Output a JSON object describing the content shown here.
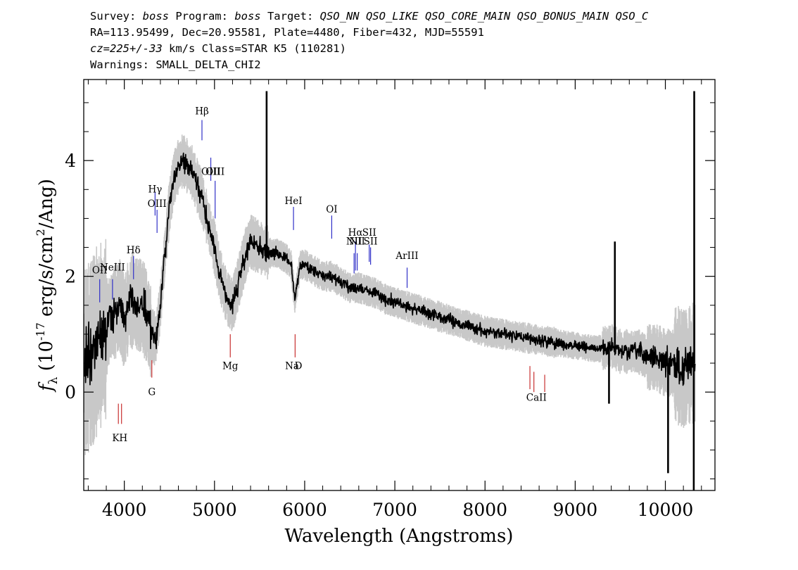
{
  "header": {
    "line1": {
      "survey_label": "Survey: ",
      "survey": "boss",
      "program_label": " Program: ",
      "program": "boss",
      "target_label": " Target: ",
      "target": "QSO_NN QSO_LIKE QSO_CORE_MAIN QSO_BONUS_MAIN QSO_C"
    },
    "line2": "RA=113.95499, Dec=20.95581, Plate=4480, Fiber=432, MJD=55591",
    "line3": {
      "cz_label": "cz",
      "cz_value": "=225+/-33",
      "rest": " km/s Class=STAR K5 (110281)"
    },
    "line4": "Warnings: SMALL_DELTA_CHI2"
  },
  "chart_data": {
    "type": "line",
    "title": "",
    "xlabel": "Wavelength (Angstroms)",
    "ylabel": "f_λ (10^-17 erg/s/cm^2/Ang)",
    "xlim": [
      3550,
      10550
    ],
    "ylim": [
      -1.7,
      5.4
    ],
    "x_ticks": [
      4000,
      5000,
      6000,
      7000,
      8000,
      9000,
      10000
    ],
    "x_tick_labels": [
      "4000",
      "5000",
      "6000",
      "7000",
      "8000",
      "9000",
      "10000"
    ],
    "y_ticks": [
      0,
      2,
      4
    ],
    "y_tick_labels": [
      "0",
      "2",
      "4"
    ],
    "ylabel_parts": {
      "f": "f",
      "sub": "λ",
      "open": "(10",
      "exp": "-17",
      "unit": "erg/s/cm",
      "exp2": "2",
      "close": "/Ang)"
    },
    "colors": {
      "spectrum": "#000000",
      "error_band": "#c8c8c8",
      "emission_lines": "#3030c8",
      "absorption_lines": "#c83030"
    },
    "spectrum_anchors": {
      "x": [
        3560,
        3650,
        3700,
        3800,
        3850,
        3900,
        3950,
        4000,
        4050,
        4100,
        4150,
        4200,
        4250,
        4300,
        4350,
        4400,
        4450,
        4500,
        4550,
        4600,
        4650,
        4700,
        4750,
        4800,
        4850,
        4900,
        4950,
        5000,
        5050,
        5100,
        5150,
        5200,
        5250,
        5300,
        5350,
        5400,
        5500,
        5600,
        5700,
        5800,
        5850,
        5890,
        5950,
        6000,
        6100,
        6200,
        6300,
        6400,
        6500,
        6600,
        6700,
        6800,
        6900,
        7000,
        7200,
        7400,
        7600,
        7800,
        8000,
        8200,
        8400,
        8600,
        8800,
        9000,
        9200,
        9300,
        9400,
        9500,
        9600,
        9700,
        9800,
        9900,
        10000,
        10100,
        10200,
        10300
      ],
      "y": [
        0.5,
        0.7,
        0.9,
        1.1,
        1.3,
        1.4,
        1.5,
        1.2,
        1.5,
        1.6,
        1.5,
        1.5,
        1.3,
        1.0,
        0.9,
        1.5,
        2.4,
        3.2,
        3.7,
        3.9,
        4.0,
        3.9,
        3.8,
        3.6,
        3.4,
        3.1,
        2.8,
        2.5,
        2.1,
        1.8,
        1.6,
        1.5,
        1.8,
        2.1,
        2.4,
        2.6,
        2.5,
        2.4,
        2.4,
        2.3,
        2.2,
        1.6,
        2.2,
        2.2,
        2.1,
        2.0,
        2.0,
        1.9,
        1.8,
        1.8,
        1.75,
        1.7,
        1.6,
        1.55,
        1.45,
        1.35,
        1.25,
        1.15,
        1.05,
        1.0,
        0.95,
        0.9,
        0.85,
        0.8,
        0.75,
        0.75,
        0.8,
        0.7,
        0.7,
        0.7,
        0.6,
        0.6,
        0.5,
        0.5,
        0.4,
        0.5
      ]
    },
    "spikes": [
      {
        "x": 5578,
        "y": 5.2
      },
      {
        "x": 9440,
        "y": 2.6
      },
      {
        "x": 9375,
        "y": -0.2
      },
      {
        "x": 10030,
        "y": -1.4
      },
      {
        "x": 10320,
        "y": 5.2
      },
      {
        "x": 10315,
        "y": -1.7
      }
    ],
    "emission_lines": [
      {
        "label": "OII",
        "x": 3727,
        "y_label": 2.05,
        "y0": 1.55,
        "y1": 1.95
      },
      {
        "label": "NeIII",
        "x": 3869,
        "y_label": 2.1,
        "y0": 1.6,
        "y1": 1.95
      },
      {
        "label": "Hδ",
        "x": 4102,
        "y_label": 2.4,
        "y0": 1.95,
        "y1": 2.35
      },
      {
        "label": "Hγ",
        "x": 4341,
        "y_label": 3.45,
        "y0": 3.05,
        "y1": 3.45
      },
      {
        "label": "OIII",
        "x": 4363,
        "y_label": 3.2,
        "y0": 2.75,
        "y1": 3.15
      },
      {
        "label": "Hβ",
        "x": 4861,
        "y_label": 4.8,
        "y0": 4.35,
        "y1": 4.7
      },
      {
        "label": "OIII",
        "x": 4959,
        "y_label": 3.75,
        "y0": 3.65,
        "y1": 4.05
      },
      {
        "label": "OIII",
        "x": 5007,
        "y_label": 3.75,
        "y0": 3.0,
        "y1": 3.65
      },
      {
        "label": "HeI",
        "x": 5876,
        "y_label": 3.25,
        "y0": 2.8,
        "y1": 3.2
      },
      {
        "label": "OI",
        "x": 6300,
        "y_label": 3.1,
        "y0": 2.65,
        "y1": 3.05
      },
      {
        "label": "NII",
        "x": 6548,
        "y_label": 2.55,
        "y0": 2.05,
        "y1": 2.4
      },
      {
        "label": "Hα",
        "x": 6563,
        "y_label": 2.7,
        "y0": 2.1,
        "y1": 2.6
      },
      {
        "label": "NII",
        "x": 6583,
        "y_label": 2.55,
        "y0": 2.1,
        "y1": 2.4
      },
      {
        "label": "SII",
        "x": 6716,
        "y_label": 2.7,
        "y0": 2.25,
        "y1": 2.55
      },
      {
        "label": "SII",
        "x": 6731,
        "y_label": 2.55,
        "y0": 2.2,
        "y1": 2.5
      },
      {
        "label": "ArIII",
        "x": 7136,
        "y_label": 2.3,
        "y0": 1.8,
        "y1": 2.15
      }
    ],
    "absorption_lines": [
      {
        "label": "KH",
        "x": 3934,
        "y0": -0.55,
        "y1": -0.2
      },
      {
        "label": "KH",
        "x": 3969,
        "y0": -0.55,
        "y1": -0.2
      },
      {
        "label": "G",
        "x": 4305,
        "y0": 0.25,
        "y1": 0.55
      },
      {
        "label": "Mg",
        "x": 5175,
        "y0": 0.6,
        "y1": 1.0
      },
      {
        "label": "Na D",
        "x": 5894,
        "y0": 0.6,
        "y1": 1.0
      },
      {
        "label": "CaII",
        "x": 8498,
        "y0": 0.05,
        "y1": 0.45
      },
      {
        "label": "CaII",
        "x": 8542,
        "y0": 0.0,
        "y1": 0.35
      },
      {
        "label": "CaII",
        "x": 8662,
        "y0": 0.0,
        "y1": 0.3
      }
    ],
    "absorption_labels": [
      {
        "label": "KH",
        "x": 3950,
        "y": -0.85
      },
      {
        "label": "G",
        "x": 4305,
        "y": -0.05
      },
      {
        "label": "Mg",
        "x": 5175,
        "y": 0.4
      },
      {
        "label": "Na",
        "x": 5860,
        "y": 0.4
      },
      {
        "label": "D",
        "x": 5930,
        "y": 0.4
      },
      {
        "label": "CaII",
        "x": 8570,
        "y": -0.15
      }
    ],
    "grid": false
  }
}
